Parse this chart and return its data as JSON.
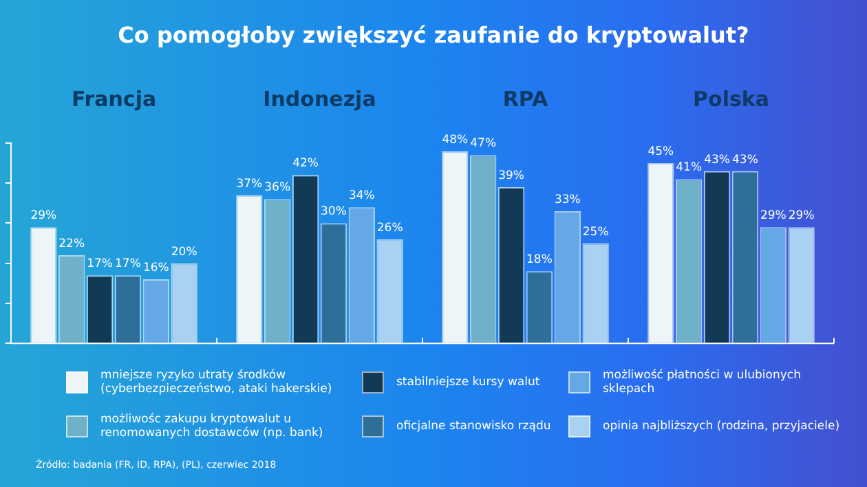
{
  "chart_data": {
    "type": "bar",
    "title": "Co pomogłoby zwiększyć zaufanie do kryptowalut?",
    "categories": [
      "Francja",
      "Indonezja",
      "RPA",
      "Polska"
    ],
    "series": [
      {
        "name": "mniejsze ryzyko utraty środków (cyberbezpieczeństwo, ataki hakerskie)",
        "color": "#eef5f9",
        "values": [
          29,
          37,
          48,
          45
        ],
        "value_labels": [
          "29%",
          "37%",
          "48%",
          "45%"
        ]
      },
      {
        "name": "możliwośc zakupu kryptowalut u renomowanych dostawców (np. bank)",
        "color": "#6fb1c8",
        "values": [
          22,
          36,
          47,
          41
        ],
        "value_labels": [
          "22%",
          "36%",
          "47%",
          "41%"
        ]
      },
      {
        "name": "stabilniejsze kursy walut",
        "color": "#123a55",
        "values": [
          17,
          42,
          39,
          43
        ],
        "value_labels": [
          "17%",
          "42%",
          "39%",
          "43%"
        ]
      },
      {
        "name": "oficjalne stanowisko rządu",
        "color": "#2e6f99",
        "values": [
          17,
          30,
          18,
          43
        ],
        "value_labels": [
          "17%",
          "30%",
          "18%",
          "43%"
        ]
      },
      {
        "name": "możliwość płatności w ulubionych sklepach",
        "color": "#64a9e6",
        "values": [
          16,
          34,
          33,
          29
        ],
        "value_labels": [
          "16%",
          "34%",
          "33%",
          "29%"
        ]
      },
      {
        "name": "opinia najbliższych (rodzina, przyjaciele)",
        "color": "#a9d2f2",
        "values": [
          20,
          26,
          25,
          29
        ],
        "value_labels": [
          "20%",
          "26%",
          "25%",
          "29%"
        ]
      }
    ],
    "ylim": [
      0,
      50
    ],
    "yticks": [
      {
        "value": 0,
        "label": null
      },
      {
        "value": 10,
        "label": null
      },
      {
        "value": 20,
        "label": null
      },
      {
        "value": 30,
        "label": null
      },
      {
        "value": 40,
        "label": null
      },
      {
        "value": 50,
        "label": null
      }
    ],
    "tick_labels": "x",
    "grid": false,
    "legend": "bottom",
    "annotations": [
      "Źródło: badania (FR, ID, RPA), (PL), czerwiec 2018"
    ]
  }
}
